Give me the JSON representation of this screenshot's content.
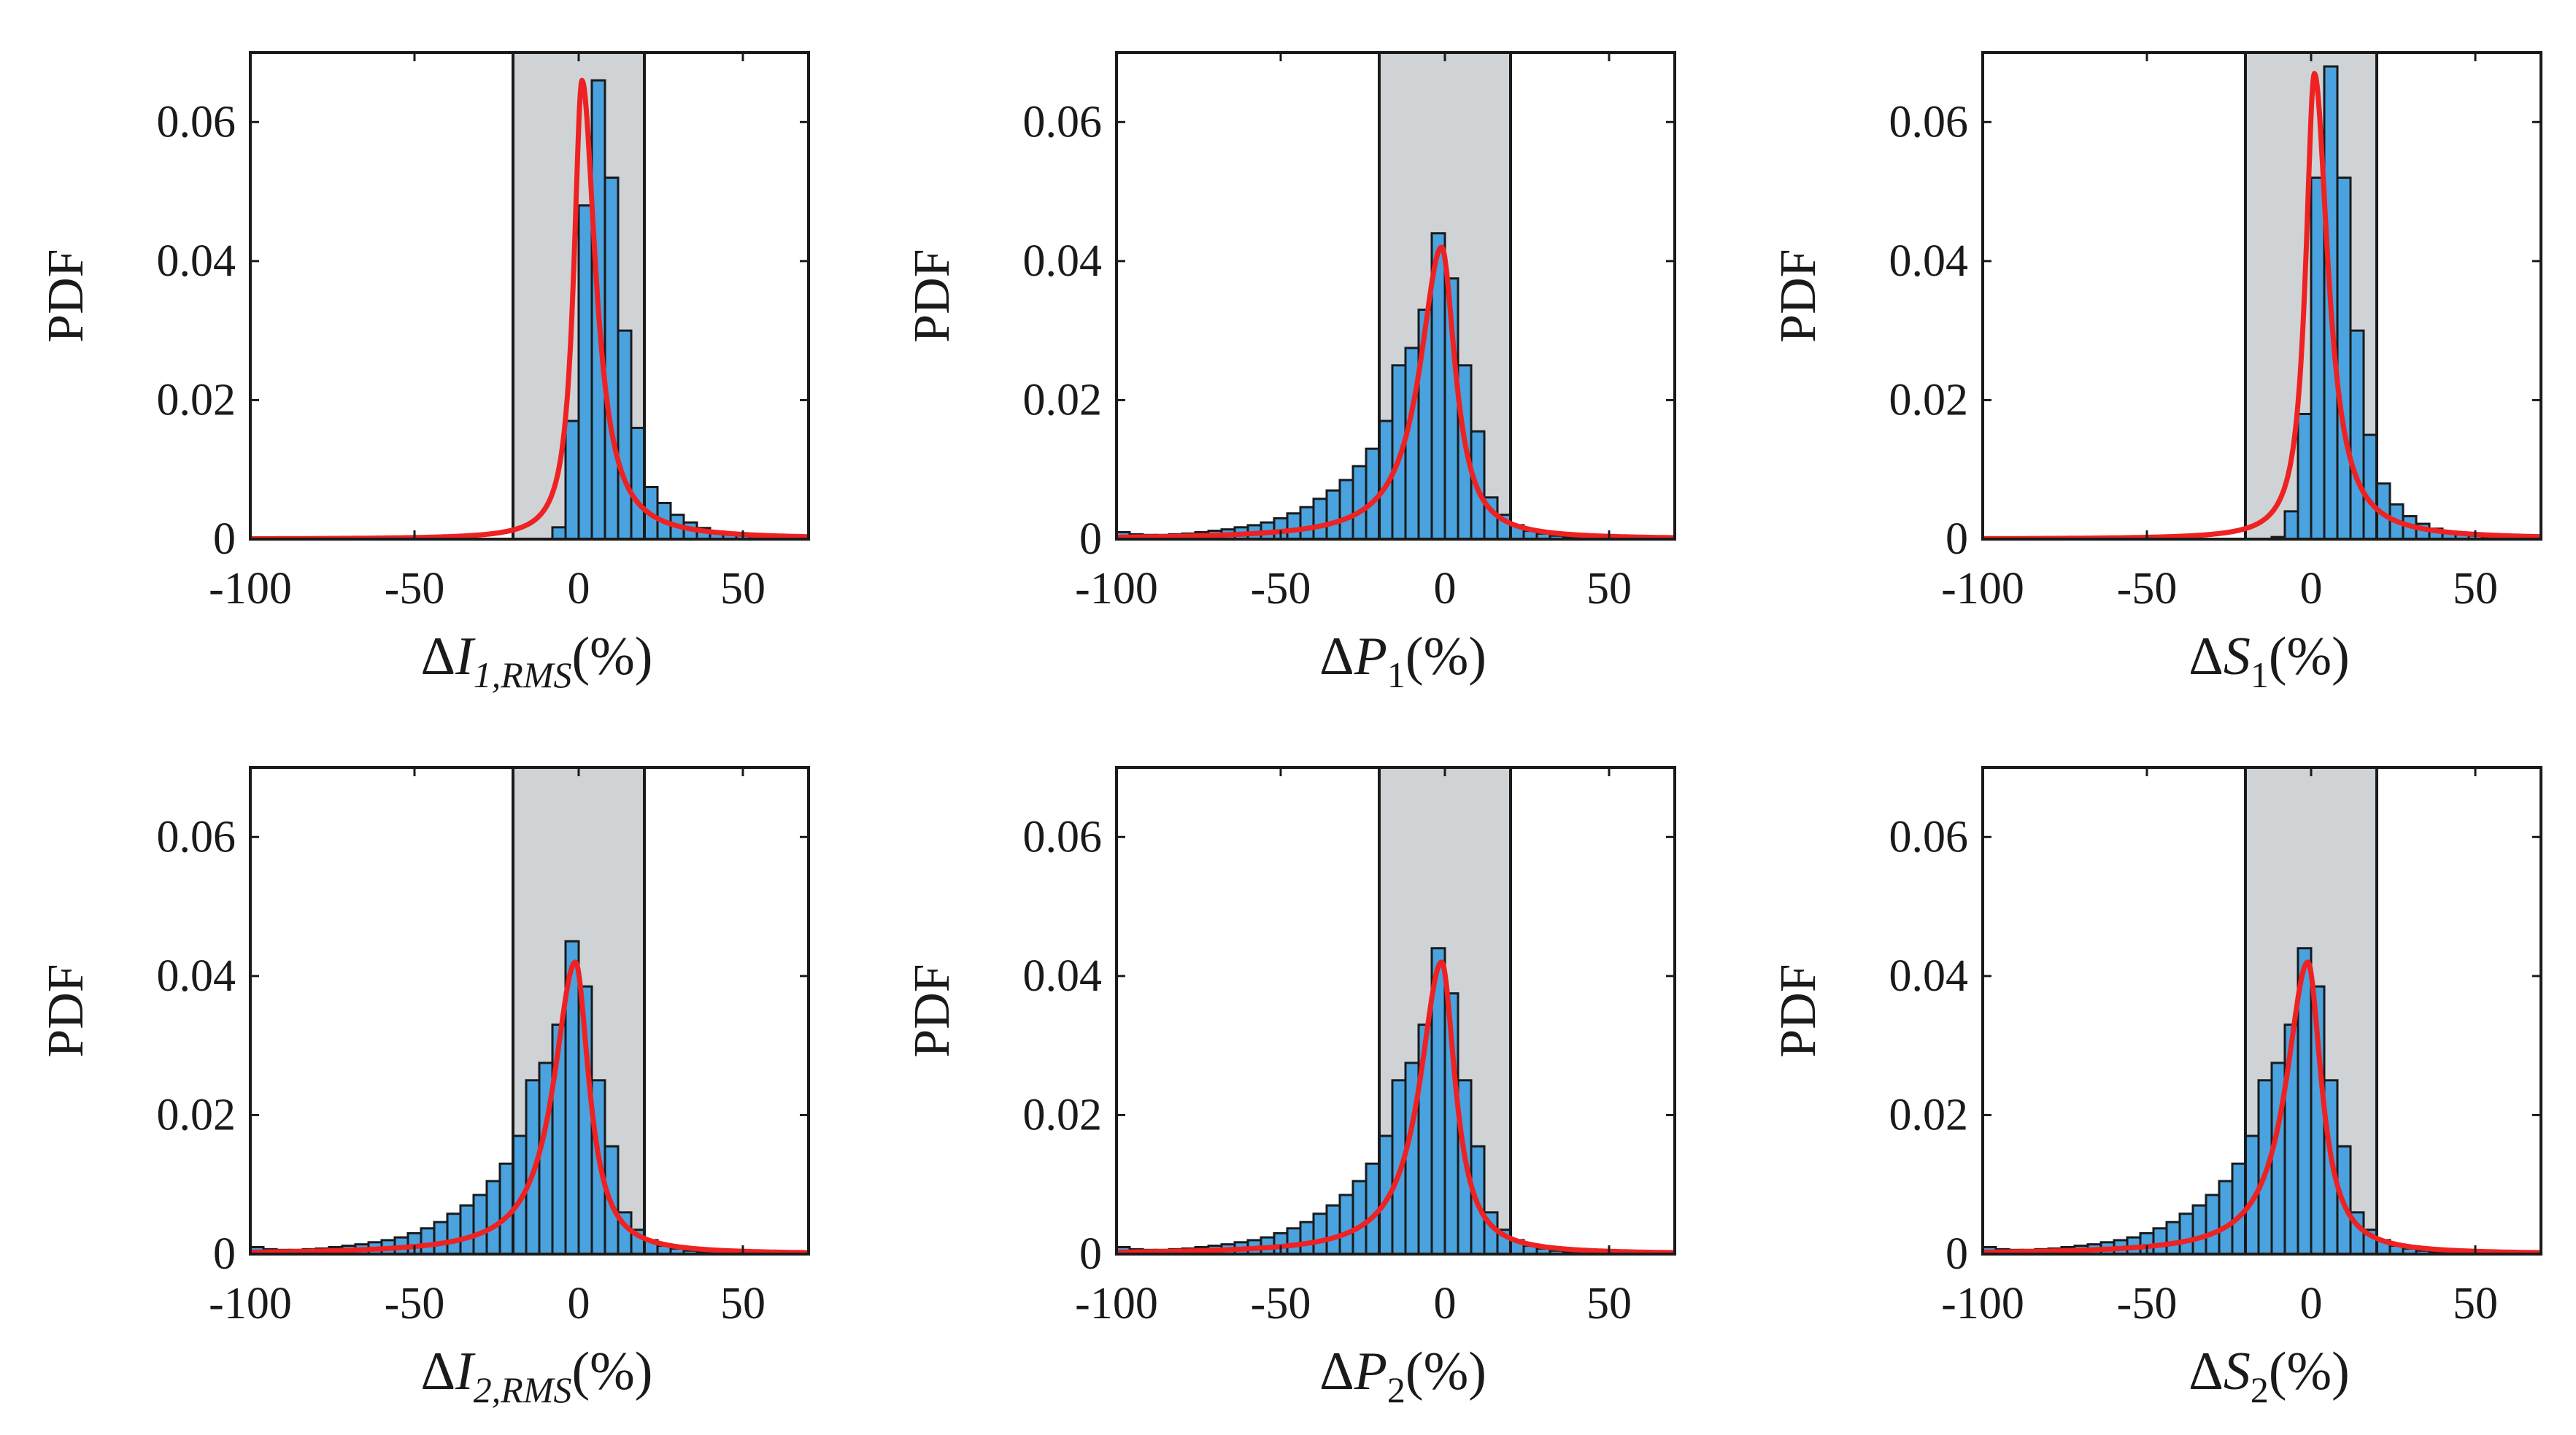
{
  "figure": {
    "title": "",
    "colors": {
      "band": "#d0d3d6",
      "bar": "#4aa3df",
      "fit": "#ee2222",
      "frame": "#1a1a1a"
    }
  },
  "chart_data": [
    {
      "type": "bar",
      "panel": "I1_RMS",
      "ylabel": "PDF",
      "xlabel": {
        "delta": "Δ",
        "var": "I",
        "sub": "1,RMS",
        "unit": "(%)"
      },
      "xlim": [
        -100,
        70
      ],
      "ylim": [
        0,
        0.07
      ],
      "xticks": [
        "-100",
        "-50",
        "0",
        "50"
      ],
      "yticks": [
        "0",
        "0.02",
        "0.04",
        "0.06"
      ],
      "shaded_band": [
        -20,
        20
      ],
      "bin_width": 4,
      "bin_centers": [
        -98,
        -94,
        -90,
        -86,
        -82,
        -78,
        -74,
        -70,
        -66,
        -62,
        -58,
        -54,
        -50,
        -46,
        -42,
        -38,
        -34,
        -30,
        -26,
        -22,
        -18,
        -14,
        -10,
        -6,
        -2,
        2,
        6,
        10,
        14,
        18,
        22,
        26,
        30,
        34,
        38,
        42,
        46,
        50,
        54,
        58,
        62,
        66
      ],
      "values": [
        0,
        0,
        0,
        0,
        0,
        0,
        0,
        0,
        0,
        0,
        0,
        0,
        0,
        0,
        0,
        0,
        0,
        0,
        0,
        0,
        0,
        0,
        0,
        0.0017,
        0.017,
        0.048,
        0.066,
        0.052,
        0.03,
        0.016,
        0.0075,
        0.0052,
        0.0035,
        0.0024,
        0.0016,
        0.0011,
        0.0008,
        0.0006,
        0.0004,
        0.0003,
        0.0002,
        0.0001
      ],
      "fit": {
        "peak": 0.066,
        "mode": 1,
        "wl": 3.0,
        "wr": 5.0
      }
    },
    {
      "type": "bar",
      "panel": "P1",
      "ylabel": "PDF",
      "xlabel": {
        "delta": "Δ",
        "var": "P",
        "sub": "1",
        "unit": "(%)"
      },
      "xlim": [
        -100,
        70
      ],
      "ylim": [
        0,
        0.07
      ],
      "xticks": [
        "-100",
        "-50",
        "0",
        "50"
      ],
      "yticks": [
        "0",
        "0.02",
        "0.04",
        "0.06"
      ],
      "shaded_band": [
        -20,
        20
      ],
      "bin_width": 4,
      "bin_centers": [
        -98,
        -94,
        -90,
        -86,
        -82,
        -78,
        -74,
        -70,
        -66,
        -62,
        -58,
        -54,
        -50,
        -46,
        -42,
        -38,
        -34,
        -30,
        -26,
        -22,
        -18,
        -14,
        -10,
        -6,
        -2,
        2,
        6,
        10,
        14,
        18,
        22,
        26,
        30,
        34,
        38,
        42,
        46,
        50,
        54,
        58,
        62,
        66
      ],
      "values": [
        0.001,
        0.0007,
        0.0006,
        0.0006,
        0.0007,
        0.0008,
        0.001,
        0.0012,
        0.0014,
        0.0017,
        0.002,
        0.0024,
        0.003,
        0.0037,
        0.0046,
        0.0058,
        0.007,
        0.0085,
        0.0105,
        0.013,
        0.017,
        0.025,
        0.0275,
        0.033,
        0.044,
        0.0375,
        0.025,
        0.0155,
        0.006,
        0.0035,
        0.002,
        0.0012,
        0.0008,
        0.0005,
        0.0003,
        0.0002,
        0.0001,
        0.0001,
        0,
        0,
        0,
        0
      ],
      "fit": {
        "peak": 0.042,
        "mode": -1,
        "wl": 8.0,
        "wr": 5.0
      }
    },
    {
      "type": "bar",
      "panel": "S1",
      "ylabel": "PDF",
      "xlabel": {
        "delta": "Δ",
        "var": "S",
        "sub": "1",
        "unit": "(%)"
      },
      "xlim": [
        -100,
        70
      ],
      "ylim": [
        0,
        0.07
      ],
      "xticks": [
        "-100",
        "-50",
        "0",
        "50"
      ],
      "yticks": [
        "0",
        "0.02",
        "0.04",
        "0.06"
      ],
      "shaded_band": [
        -20,
        20
      ],
      "bin_width": 4,
      "bin_centers": [
        -98,
        -94,
        -90,
        -86,
        -82,
        -78,
        -74,
        -70,
        -66,
        -62,
        -58,
        -54,
        -50,
        -46,
        -42,
        -38,
        -34,
        -30,
        -26,
        -22,
        -18,
        -14,
        -10,
        -6,
        -2,
        2,
        6,
        10,
        14,
        18,
        22,
        26,
        30,
        34,
        38,
        42,
        46,
        50,
        54,
        58,
        62,
        66
      ],
      "values": [
        0,
        0,
        0,
        0,
        0,
        0,
        0,
        0,
        0,
        0,
        0,
        0,
        0,
        0,
        0,
        0,
        0,
        0,
        0,
        0,
        0,
        0,
        0.0003,
        0.004,
        0.018,
        0.052,
        0.068,
        0.052,
        0.03,
        0.015,
        0.008,
        0.005,
        0.0033,
        0.0022,
        0.0015,
        0.001,
        0.0007,
        0.0005,
        0.0003,
        0.0002,
        0.0002,
        0.0001
      ],
      "fit": {
        "peak": 0.067,
        "mode": 1,
        "wl": 3.2,
        "wr": 5.0
      }
    },
    {
      "type": "bar",
      "panel": "I2_RMS",
      "ylabel": "PDF",
      "xlabel": {
        "delta": "Δ",
        "var": "I",
        "sub": "2,RMS",
        "unit": "(%)"
      },
      "xlim": [
        -100,
        70
      ],
      "ylim": [
        0,
        0.07
      ],
      "xticks": [
        "-100",
        "-50",
        "0",
        "50"
      ],
      "yticks": [
        "0",
        "0.02",
        "0.04",
        "0.06"
      ],
      "shaded_band": [
        -20,
        20
      ],
      "bin_width": 4,
      "bin_centers": [
        -98,
        -94,
        -90,
        -86,
        -82,
        -78,
        -74,
        -70,
        -66,
        -62,
        -58,
        -54,
        -50,
        -46,
        -42,
        -38,
        -34,
        -30,
        -26,
        -22,
        -18,
        -14,
        -10,
        -6,
        -2,
        2,
        6,
        10,
        14,
        18,
        22,
        26,
        30,
        34,
        38,
        42,
        46,
        50,
        54,
        58,
        62,
        66
      ],
      "values": [
        0.001,
        0.0007,
        0.0006,
        0.0006,
        0.0007,
        0.0008,
        0.001,
        0.0012,
        0.0014,
        0.0017,
        0.002,
        0.0024,
        0.003,
        0.0037,
        0.0046,
        0.0058,
        0.007,
        0.0085,
        0.0105,
        0.013,
        0.017,
        0.025,
        0.0275,
        0.033,
        0.045,
        0.0385,
        0.025,
        0.0155,
        0.006,
        0.0035,
        0.002,
        0.0012,
        0.0008,
        0.0005,
        0.0003,
        0.0002,
        0.0001,
        0.0001,
        0,
        0,
        0,
        0
      ],
      "fit": {
        "peak": 0.042,
        "mode": -1,
        "wl": 8.0,
        "wr": 5.0
      }
    },
    {
      "type": "bar",
      "panel": "P2",
      "ylabel": "PDF",
      "xlabel": {
        "delta": "Δ",
        "var": "P",
        "sub": "2",
        "unit": "(%)"
      },
      "xlim": [
        -100,
        70
      ],
      "ylim": [
        0,
        0.07
      ],
      "xticks": [
        "-100",
        "-50",
        "0",
        "50"
      ],
      "yticks": [
        "0",
        "0.02",
        "0.04",
        "0.06"
      ],
      "shaded_band": [
        -20,
        20
      ],
      "bin_width": 4,
      "bin_centers": [
        -98,
        -94,
        -90,
        -86,
        -82,
        -78,
        -74,
        -70,
        -66,
        -62,
        -58,
        -54,
        -50,
        -46,
        -42,
        -38,
        -34,
        -30,
        -26,
        -22,
        -18,
        -14,
        -10,
        -6,
        -2,
        2,
        6,
        10,
        14,
        18,
        22,
        26,
        30,
        34,
        38,
        42,
        46,
        50,
        54,
        58,
        62,
        66
      ],
      "values": [
        0.001,
        0.0007,
        0.0006,
        0.0006,
        0.0007,
        0.0008,
        0.001,
        0.0012,
        0.0014,
        0.0017,
        0.002,
        0.0024,
        0.003,
        0.0037,
        0.0046,
        0.0058,
        0.007,
        0.0085,
        0.0105,
        0.013,
        0.017,
        0.025,
        0.0275,
        0.033,
        0.044,
        0.0375,
        0.025,
        0.0155,
        0.006,
        0.0035,
        0.002,
        0.0012,
        0.0008,
        0.0005,
        0.0003,
        0.0002,
        0.0001,
        0.0001,
        0,
        0,
        0,
        0
      ],
      "fit": {
        "peak": 0.042,
        "mode": -1,
        "wl": 8.0,
        "wr": 5.0
      }
    },
    {
      "type": "bar",
      "panel": "S2",
      "ylabel": "PDF",
      "xlabel": {
        "delta": "Δ",
        "var": "S",
        "sub": "2",
        "unit": "(%)"
      },
      "xlim": [
        -100,
        70
      ],
      "ylim": [
        0,
        0.07
      ],
      "xticks": [
        "-100",
        "-50",
        "0",
        "50"
      ],
      "yticks": [
        "0",
        "0.02",
        "0.04",
        "0.06"
      ],
      "shaded_band": [
        -20,
        20
      ],
      "bin_width": 4,
      "bin_centers": [
        -98,
        -94,
        -90,
        -86,
        -82,
        -78,
        -74,
        -70,
        -66,
        -62,
        -58,
        -54,
        -50,
        -46,
        -42,
        -38,
        -34,
        -30,
        -26,
        -22,
        -18,
        -14,
        -10,
        -6,
        -2,
        2,
        6,
        10,
        14,
        18,
        22,
        26,
        30,
        34,
        38,
        42,
        46,
        50,
        54,
        58,
        62,
        66
      ],
      "values": [
        0.001,
        0.0007,
        0.0006,
        0.0006,
        0.0007,
        0.0008,
        0.001,
        0.0012,
        0.0014,
        0.0017,
        0.002,
        0.0024,
        0.003,
        0.0037,
        0.0046,
        0.0058,
        0.007,
        0.0085,
        0.0105,
        0.013,
        0.017,
        0.025,
        0.0275,
        0.033,
        0.044,
        0.0385,
        0.025,
        0.0155,
        0.006,
        0.0035,
        0.002,
        0.0012,
        0.0008,
        0.0005,
        0.0003,
        0.0002,
        0.0001,
        0.0001,
        0,
        0,
        0,
        0
      ],
      "fit": {
        "peak": 0.042,
        "mode": -1,
        "wl": 8.0,
        "wr": 5.0
      }
    }
  ]
}
